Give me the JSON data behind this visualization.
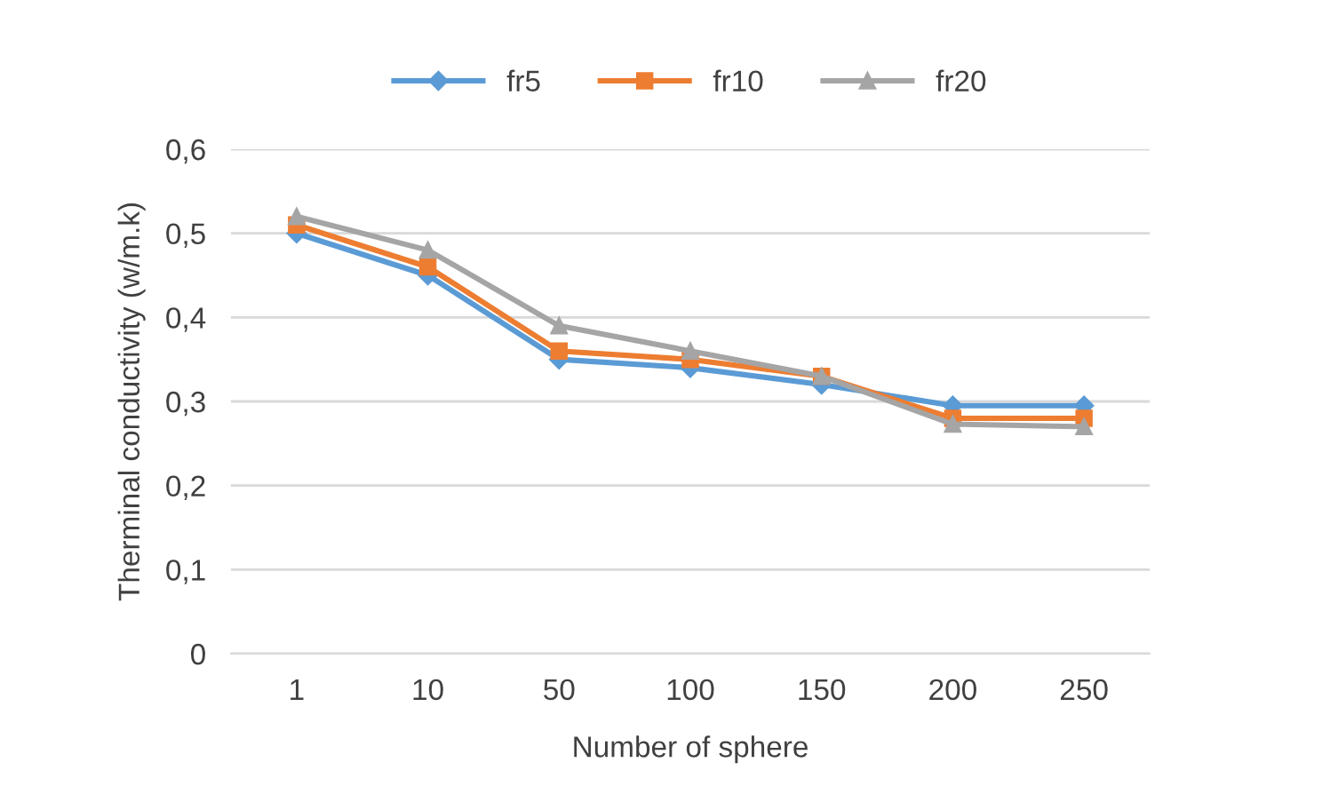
{
  "chart_data": {
    "type": "line",
    "xlabel": "Number of sphere",
    "ylabel": "Therminal conductivity (w/m.k)",
    "categories": [
      "1",
      "10",
      "50",
      "100",
      "150",
      "200",
      "250"
    ],
    "series": [
      {
        "name": "fr5",
        "color": "#5b9bd5",
        "marker": "diamond",
        "values": [
          0.5,
          0.45,
          0.35,
          0.34,
          0.32,
          0.295,
          0.295
        ]
      },
      {
        "name": "fr10",
        "color": "#ed7d31",
        "marker": "square",
        "values": [
          0.51,
          0.46,
          0.36,
          0.35,
          0.33,
          0.28,
          0.28
        ]
      },
      {
        "name": "fr20",
        "color": "#a5a5a5",
        "marker": "triangle",
        "values": [
          0.52,
          0.48,
          0.39,
          0.36,
          0.33,
          0.273,
          0.27
        ]
      }
    ],
    "ylim": [
      0,
      0.6
    ],
    "yticks": [
      {
        "value": 0,
        "label": "0"
      },
      {
        "value": 0.1,
        "label": "0,1"
      },
      {
        "value": 0.2,
        "label": "0,2"
      },
      {
        "value": 0.3,
        "label": "0,3"
      },
      {
        "value": 0.4,
        "label": "0,4"
      },
      {
        "value": 0.5,
        "label": "0,5"
      },
      {
        "value": 0.6,
        "label": "0,6"
      }
    ],
    "grid": "y",
    "legend": "top",
    "line_style": "solid"
  }
}
